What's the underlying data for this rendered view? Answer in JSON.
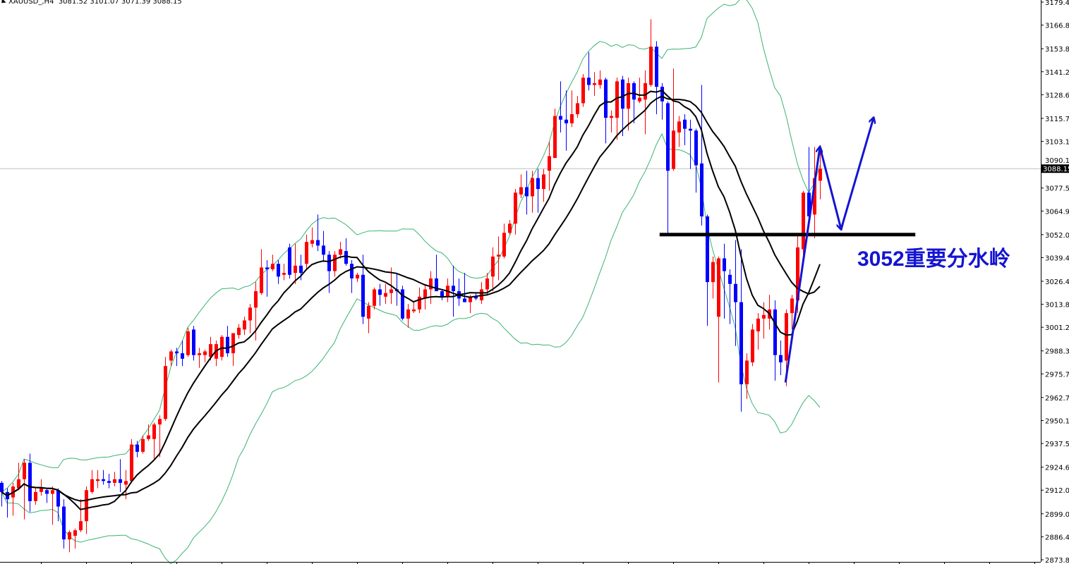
{
  "header": {
    "symbol": "XAUUSD_,H4",
    "ohlc": "3081.52 3101.07 3071.39 3088.15"
  },
  "annotation_text": "3052重要分水岭",
  "colors": {
    "bull": "#ff0000",
    "bear": "#0000ff",
    "bands": "#3cb371",
    "ma": "#000000",
    "level": "#000000",
    "projection": "#1414d2",
    "bid_line": "#c0c0c0"
  },
  "chart_data": {
    "type": "candlestick",
    "symbol": "XAUUSD",
    "timeframe": "H4",
    "ylim": [
      2873.85,
      3179.4
    ],
    "grid": false,
    "y_ticks": [
      "3179.40",
      "3166.80",
      "3153.85",
      "3141.25",
      "3128.65",
      "3115.70",
      "3103.10",
      "3090.15",
      "3077.55",
      "3064.95",
      "3052.00",
      "3039.40",
      "3026.45",
      "3013.85",
      "3001.25",
      "2988.30",
      "2975.70",
      "2962.75",
      "2950.15",
      "2937.55",
      "2924.60",
      "2912.00",
      "2899.05",
      "2886.45",
      "2873.85"
    ],
    "bid": "3088.15",
    "indicators": [
      {
        "type": "bollinger",
        "period": 20,
        "deviation": 2,
        "color": "#3cb371"
      },
      {
        "type": "sma",
        "period": 10,
        "color": "#000000"
      },
      {
        "type": "sma",
        "period": 20,
        "color": "#000000"
      }
    ],
    "candles_ohlc": [
      [
        2916,
        2917,
        2903,
        2911
      ],
      [
        2911,
        2913,
        2897,
        2907
      ],
      [
        2908,
        2916,
        2898,
        2914
      ],
      [
        2913,
        2927,
        2912,
        2918
      ],
      [
        2918,
        2929,
        2896,
        2927
      ],
      [
        2927,
        2932,
        2900,
        2906
      ],
      [
        2906,
        2913,
        2904,
        2911
      ],
      [
        2911,
        2918,
        2909,
        2913
      ],
      [
        2912,
        2913,
        2905,
        2910
      ],
      [
        2910,
        2914,
        2893,
        2912
      ],
      [
        2912,
        2913,
        2895,
        2903
      ],
      [
        2903,
        2907,
        2880,
        2885
      ],
      [
        2885,
        2890,
        2878,
        2889
      ],
      [
        2887,
        2891,
        2880,
        2890
      ],
      [
        2890,
        2907,
        2889,
        2895
      ],
      [
        2895,
        2914,
        2888,
        2912
      ],
      [
        2911,
        2923,
        2910,
        2918
      ],
      [
        2917,
        2923,
        2913,
        2918
      ],
      [
        2918,
        2923,
        2915,
        2917
      ],
      [
        2917,
        2921,
        2913,
        2916
      ],
      [
        2916,
        2922,
        2914,
        2918
      ],
      [
        2918,
        2929,
        2911,
        2916
      ],
      [
        2915,
        2923,
        2907,
        2917
      ],
      [
        2917,
        2940,
        2916,
        2937
      ],
      [
        2937,
        2939,
        2930,
        2933
      ],
      [
        2933,
        2942,
        2932,
        2940
      ],
      [
        2940,
        2948,
        2939,
        2942
      ],
      [
        2940,
        2949,
        2929,
        2948
      ],
      [
        2948,
        2953,
        2930,
        2951
      ],
      [
        2951,
        2985,
        2950,
        2980
      ],
      [
        2983,
        2989,
        2980,
        2988
      ],
      [
        2988,
        2990,
        2980,
        2987
      ],
      [
        2987,
        2994,
        2980,
        2984
      ],
      [
        2986,
        3001,
        2985,
        2999
      ],
      [
        3000,
        3002,
        2983,
        2986
      ],
      [
        2986,
        2990,
        2979,
        2987
      ],
      [
        2986,
        2989,
        2982,
        2988
      ],
      [
        2985,
        2996,
        2983,
        2992
      ],
      [
        2984,
        2994,
        2980,
        2992
      ],
      [
        2985,
        2997,
        2983,
        2996
      ],
      [
        2996,
        3002,
        2985,
        2987
      ],
      [
        2987,
        2998,
        2980,
        2998
      ],
      [
        2997,
        3003,
        2995,
        3001
      ],
      [
        3000,
        3007,
        2997,
        3005
      ],
      [
        3005,
        3014,
        2998,
        3012
      ],
      [
        3012,
        3026,
        2994,
        3021
      ],
      [
        3020,
        3044,
        3019,
        3034
      ],
      [
        3034,
        3038,
        3018,
        3033
      ],
      [
        3033,
        3041,
        3032,
        3036
      ],
      [
        3036,
        3038,
        3025,
        3029
      ],
      [
        3030,
        3036,
        3027,
        3031
      ],
      [
        3045,
        3047,
        3028,
        3030
      ],
      [
        3031,
        3047,
        3025,
        3035
      ],
      [
        3035,
        3041,
        3027,
        3031
      ],
      [
        3036,
        3052,
        3033,
        3048
      ],
      [
        3047,
        3056,
        3045,
        3049
      ],
      [
        3049,
        3063,
        3043,
        3046
      ],
      [
        3046,
        3054,
        3037,
        3041
      ],
      [
        3041,
        3043,
        3020,
        3032
      ],
      [
        3032,
        3043,
        3029,
        3041
      ],
      [
        3041,
        3048,
        3039,
        3044
      ],
      [
        3043,
        3050,
        3035,
        3036
      ],
      [
        3036,
        3038,
        3020,
        3028
      ],
      [
        3028,
        3031,
        3026,
        3030
      ],
      [
        3030,
        3041,
        3003,
        3007
      ],
      [
        3006,
        3015,
        2998,
        3013
      ],
      [
        3013,
        3023,
        3011,
        3022
      ],
      [
        3022,
        3025,
        3013,
        3019
      ],
      [
        3018,
        3025,
        3014,
        3020
      ],
      [
        3020,
        3034,
        3014,
        3022
      ],
      [
        3022,
        3031,
        3013,
        3021
      ],
      [
        3022,
        3024,
        3005,
        3006
      ],
      [
        3006,
        3014,
        3001,
        3011
      ],
      [
        3010,
        3015,
        3009,
        3011
      ],
      [
        3011,
        3023,
        3009,
        3018
      ],
      [
        3017,
        3025,
        3011,
        3022
      ],
      [
        3022,
        3032,
        3014,
        3028
      ],
      [
        3028,
        3041,
        3021,
        3021
      ],
      [
        3021,
        3022,
        3016,
        3018
      ],
      [
        3018,
        3028,
        3015,
        3024
      ],
      [
        3024,
        3035,
        3007,
        3021
      ],
      [
        3021,
        3028,
        3013,
        3017
      ],
      [
        3017,
        3031,
        3015,
        3015
      ],
      [
        3015,
        3019,
        3009,
        3018
      ],
      [
        3018,
        3020,
        3016,
        3017
      ],
      [
        3016,
        3026,
        3014,
        3022
      ],
      [
        3022,
        3031,
        3019,
        3028
      ],
      [
        3029,
        3045,
        3021,
        3040
      ],
      [
        3040,
        3051,
        3027,
        3041
      ],
      [
        3040,
        3058,
        3039,
        3053
      ],
      [
        3053,
        3060,
        3052,
        3058
      ],
      [
        3058,
        3077,
        3052,
        3075
      ],
      [
        3074,
        3085,
        3072,
        3078
      ],
      [
        3078,
        3087,
        3063,
        3073
      ],
      [
        3073,
        3087,
        3064,
        3083
      ],
      [
        3083,
        3088,
        3064,
        3077
      ],
      [
        3077,
        3088,
        3070,
        3085
      ],
      [
        3087,
        3103,
        3076,
        3095
      ],
      [
        3094,
        3121,
        3094,
        3117
      ],
      [
        3117,
        3136,
        3108,
        3115
      ],
      [
        3115,
        3131,
        3098,
        3113
      ],
      [
        3113,
        3131,
        3111,
        3118
      ],
      [
        3118,
        3128,
        3116,
        3124
      ],
      [
        3124,
        3140,
        3122,
        3138
      ],
      [
        3138,
        3152,
        3131,
        3134
      ],
      [
        3134,
        3141,
        3128,
        3135
      ],
      [
        3134,
        3142,
        3132,
        3137
      ],
      [
        3137,
        3138,
        3102,
        3116
      ],
      [
        3116,
        3120,
        3108,
        3117
      ],
      [
        3116,
        3138,
        3104,
        3136
      ],
      [
        3137,
        3139,
        3106,
        3121
      ],
      [
        3121,
        3138,
        3109,
        3135
      ],
      [
        3135,
        3136,
        3113,
        3126
      ],
      [
        3125,
        3138,
        3124,
        3127
      ],
      [
        3126,
        3142,
        3107,
        3135
      ],
      [
        3134,
        3170,
        3133,
        3155
      ],
      [
        3155,
        3158,
        3118,
        3133
      ],
      [
        3133,
        3135,
        3115,
        3125
      ],
      [
        3124,
        3125,
        3052,
        3087
      ],
      [
        3088,
        3143,
        3087,
        3109
      ],
      [
        3108,
        3117,
        3100,
        3114
      ],
      [
        3115,
        3118,
        3101,
        3110
      ],
      [
        3110,
        3115,
        3088,
        3109
      ],
      [
        3109,
        3110,
        3075,
        3090
      ],
      [
        3091,
        3134,
        3057,
        3062
      ],
      [
        3062,
        3063,
        3002,
        3026
      ],
      [
        3026,
        3040,
        3017,
        3037
      ],
      [
        3007,
        3040,
        2971,
        3039
      ],
      [
        3039,
        3047,
        3006,
        3032
      ],
      [
        3030,
        3033,
        3003,
        3025
      ],
      [
        3025,
        3049,
        2991,
        3015
      ],
      [
        3015,
        3044,
        2955,
        2970
      ],
      [
        2970,
        2987,
        2962,
        2983
      ],
      [
        2982,
        3003,
        2980,
        3000
      ],
      [
        2999,
        3009,
        2989,
        3006
      ],
      [
        3006,
        3015,
        2995,
        3008
      ],
      [
        3006,
        3019,
        3000,
        3011
      ],
      [
        3011,
        3016,
        2972,
        2986
      ],
      [
        2986,
        2994,
        2975,
        2982
      ],
      [
        2983,
        3011,
        2969,
        3009
      ],
      [
        3009,
        3019,
        3000,
        3017
      ],
      [
        3016,
        3052,
        3009,
        3045
      ],
      [
        3044,
        3076,
        3040,
        3075
      ],
      [
        3075,
        3100,
        3060,
        3062
      ],
      [
        3063,
        3100,
        3050,
        3083
      ],
      [
        3081.52,
        3101.07,
        3071.39,
        3088.15
      ]
    ],
    "level_line": {
      "price": 3052,
      "from_bar": 116.6,
      "to_bar": 161.9
    },
    "projection_path": [
      [
        138.9,
        2971
      ],
      [
        145,
        3100
      ],
      [
        148.75,
        3055
      ],
      [
        154.5,
        3116
      ]
    ]
  }
}
